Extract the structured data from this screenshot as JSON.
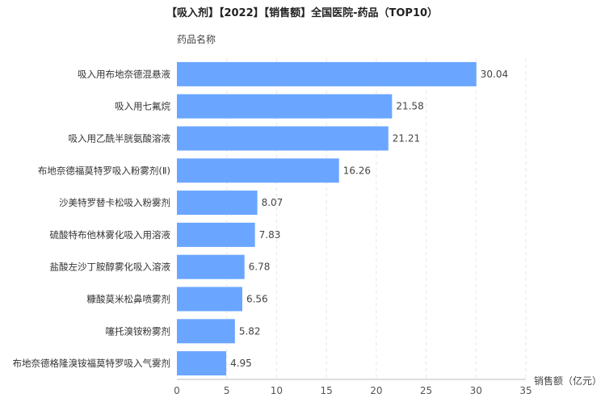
{
  "chart_data": {
    "type": "bar",
    "orientation": "horizontal",
    "title": "【吸入剂】【2022】【销售额】全国医院-药品（TOP10）",
    "ylabel": "药品名称",
    "xlabel": "销售额（亿元）",
    "xlim": [
      0,
      35
    ],
    "xticks": [
      0,
      5,
      10,
      15,
      20,
      25,
      30,
      35
    ],
    "grid": true,
    "bar_color": "#6aa6ff",
    "categories": [
      "吸入用布地奈德混悬液",
      "吸入用七氟烷",
      "吸入用乙酰半胱氨酸溶液",
      "布地奈德福莫特罗吸入粉雾剂(Ⅱ)",
      "沙美特罗替卡松吸入粉雾剂",
      "硫酸特布他林雾化吸入用溶液",
      "盐酸左沙丁胺醇雾化吸入溶液",
      "糠酸莫米松鼻喷雾剂",
      "噻托溴铵粉雾剂",
      "布地奈德格隆溴铵福莫特罗吸入气雾剂"
    ],
    "values": [
      30.04,
      21.58,
      21.21,
      16.26,
      8.07,
      7.83,
      6.78,
      6.56,
      5.82,
      4.95
    ]
  }
}
